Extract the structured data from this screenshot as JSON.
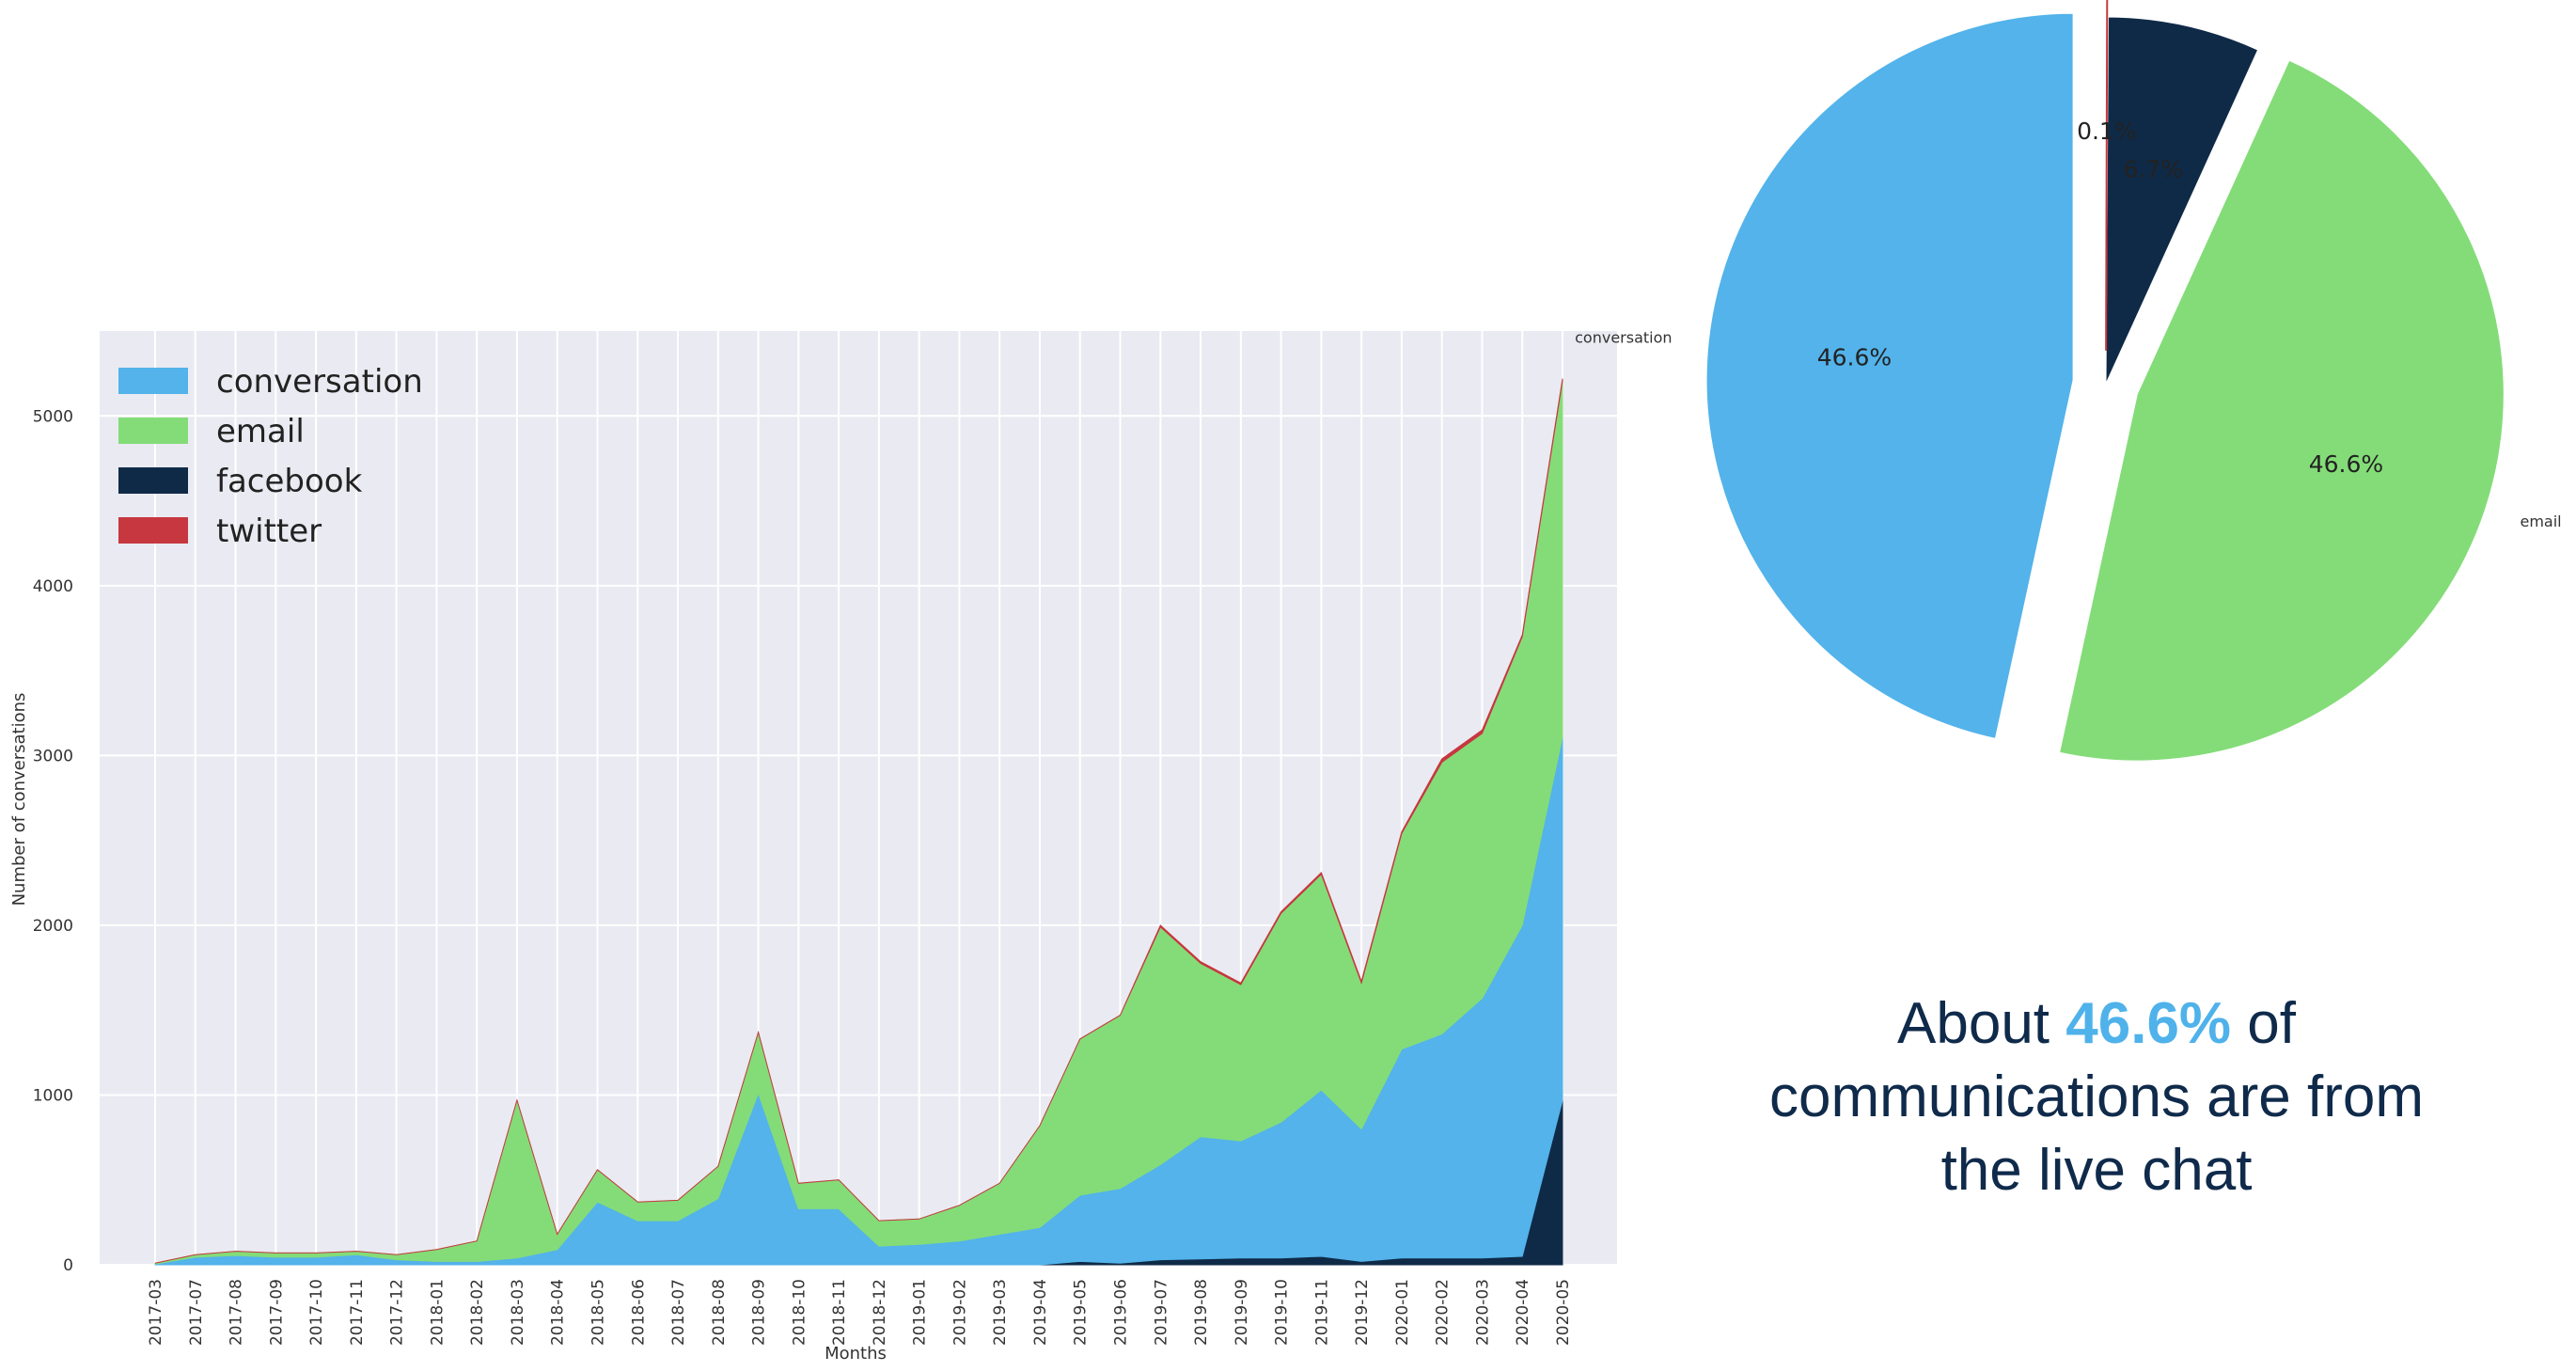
{
  "chart_data": [
    {
      "type": "area",
      "stacked": true,
      "xlabel": "Months",
      "ylabel": "Number of conversations",
      "ylim": [
        0,
        5500
      ],
      "yticks": [
        0,
        1000,
        2000,
        3000,
        4000,
        5000
      ],
      "grid": true,
      "legend_position": "top-left",
      "categories": [
        "2017-03",
        "2017-07",
        "2017-08",
        "2017-09",
        "2017-10",
        "2017-11",
        "2017-12",
        "2018-01",
        "2018-02",
        "2018-03",
        "2018-04",
        "2018-05",
        "2018-06",
        "2018-07",
        "2018-08",
        "2018-09",
        "2018-10",
        "2018-11",
        "2018-12",
        "2019-01",
        "2019-02",
        "2019-03",
        "2019-04",
        "2019-05",
        "2019-06",
        "2019-07",
        "2019-08",
        "2019-09",
        "2019-10",
        "2019-11",
        "2019-12",
        "2020-01",
        "2020-02",
        "2020-03",
        "2020-04",
        "2020-05"
      ],
      "series": [
        {
          "name": "facebook",
          "color": "#0f2a47",
          "values": [
            0,
            0,
            0,
            0,
            0,
            0,
            0,
            0,
            0,
            0,
            0,
            0,
            0,
            0,
            0,
            0,
            0,
            0,
            0,
            0,
            0,
            0,
            0,
            20,
            10,
            30,
            35,
            40,
            40,
            50,
            20,
            40,
            40,
            40,
            50,
            970
          ]
        },
        {
          "name": "conversation",
          "color": "#53b3ea",
          "values": [
            5,
            45,
            55,
            45,
            45,
            60,
            30,
            20,
            20,
            40,
            90,
            370,
            260,
            260,
            390,
            1010,
            330,
            330,
            110,
            120,
            140,
            180,
            220,
            390,
            440,
            560,
            720,
            690,
            800,
            980,
            780,
            1230,
            1320,
            1530,
            1950,
            2140
          ]
        },
        {
          "name": "email",
          "color": "#84dc78",
          "values": [
            5,
            15,
            25,
            25,
            25,
            20,
            30,
            70,
            120,
            930,
            90,
            190,
            110,
            120,
            190,
            360,
            150,
            170,
            150,
            150,
            210,
            300,
            600,
            920,
            1020,
            1400,
            1020,
            920,
            1230,
            1270,
            860,
            1270,
            1600,
            1560,
            1700,
            2100
          ]
        },
        {
          "name": "twitter",
          "color": "#c7373f",
          "values": [
            0,
            0,
            0,
            0,
            0,
            0,
            0,
            0,
            0,
            0,
            0,
            0,
            0,
            0,
            0,
            0,
            0,
            0,
            0,
            0,
            0,
            0,
            0,
            0,
            0,
            10,
            10,
            10,
            10,
            10,
            10,
            10,
            20,
            20,
            10,
            10
          ]
        }
      ],
      "legend_order": [
        "conversation",
        "email",
        "facebook",
        "twitter"
      ]
    },
    {
      "type": "pie",
      "slices": [
        {
          "label": "conversation",
          "value": 46.6,
          "pct_label": "46.6%",
          "color": "#53b3ea",
          "exploded": true
        },
        {
          "label": "email",
          "value": 46.6,
          "pct_label": "46.6%",
          "color": "#84dc78",
          "exploded": true
        },
        {
          "label": "facebook",
          "value": 6.7,
          "pct_label": "6.7%",
          "color": "#0f2a47",
          "exploded": false
        },
        {
          "label": "twitter",
          "value": 0.1,
          "pct_label": "0.1%",
          "color": "#c7373f",
          "exploded": true
        }
      ]
    }
  ],
  "caption": {
    "before": "About ",
    "highlight": "46.6%",
    "after": " of communications are from the live chat"
  },
  "colors": {
    "highlight": "#4fb2ea",
    "caption_text": "#0f2a4a",
    "plot_background": "#eaeaf2"
  }
}
